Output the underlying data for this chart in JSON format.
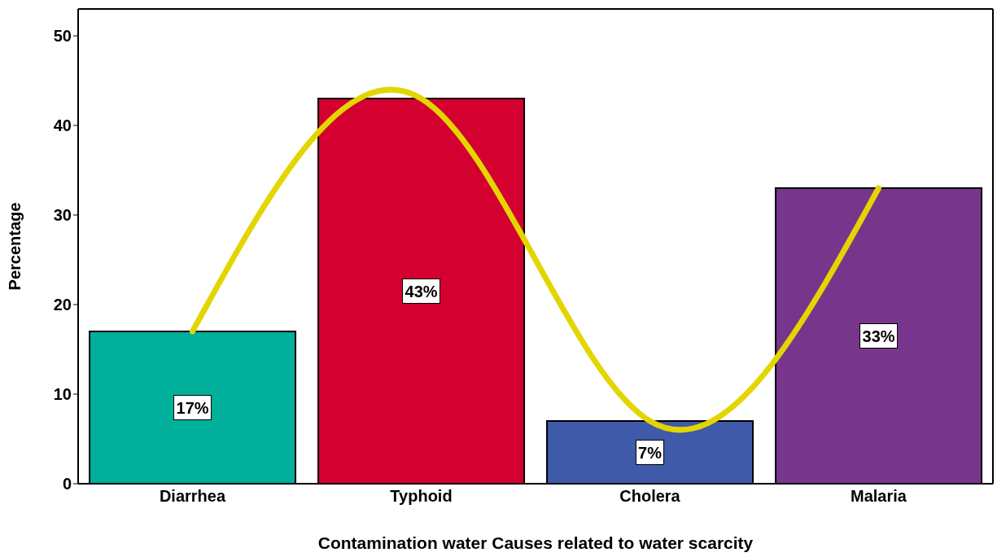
{
  "chart_data": {
    "type": "bar",
    "xlabel": "Contamination water Causes related to water scarcity",
    "ylabel": "Percentage",
    "categories": [
      "Diarrhea",
      "Typhoid",
      "Cholera",
      "Malaria"
    ],
    "ylim": [
      0,
      53
    ],
    "yticks": [
      0,
      10,
      20,
      30,
      40,
      50
    ],
    "series": [
      {
        "colors": [
          "#00b09b",
          "#d40030",
          "#3f5aa8",
          "#77368c"
        ],
        "values": [
          17,
          43,
          7,
          33
        ],
        "value_labels": [
          "17%",
          "43%",
          "7%",
          "33%"
        ]
      },
      {
        "type": "line",
        "color": "#e3d600",
        "values": [
          17,
          43,
          7,
          33
        ]
      }
    ]
  }
}
